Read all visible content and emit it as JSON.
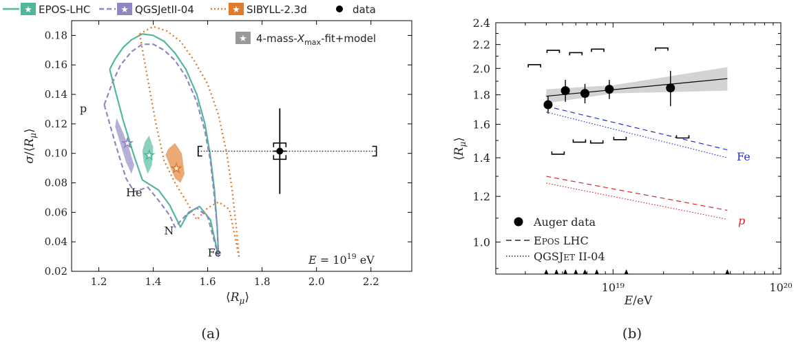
{
  "legend_top": [
    {
      "label": "EPOS-LHC",
      "color": "#4fb89c",
      "style": "solid"
    },
    {
      "label": "QGSJetII-04",
      "color": "#8f86c2",
      "style": "dashed"
    },
    {
      "label": "SIBYLL-2.3d",
      "color": "#e07b2c",
      "style": "dotted"
    },
    {
      "label": "data",
      "color": "#000000",
      "style": "marker"
    }
  ],
  "captions": {
    "a": "(a)",
    "b": "(b)"
  },
  "colors": {
    "epos": "#4fb89c",
    "qgs": "#8f86c2",
    "sib": "#e07b2c",
    "band": "#c8c8c8",
    "fe": "#2233cc",
    "p": "#dd2222"
  },
  "chart_data": [
    {
      "type": "scatter",
      "xlabel": "⟨Rμ⟩",
      "ylabel": "σ/⟨Rμ⟩",
      "xlim": [
        1.1,
        2.35
      ],
      "ylim": [
        0.02,
        0.19
      ],
      "xticks": [
        1.2,
        1.4,
        1.6,
        1.8,
        2.0,
        2.2
      ],
      "yticks": [
        0.02,
        0.04,
        0.06,
        0.08,
        0.1,
        0.12,
        0.14,
        0.16,
        0.18
      ],
      "grid": false,
      "legend_inset": "4-mass-Xmax-fit+model",
      "annotation": "E = 10¹⁹ eV",
      "composition_labels": [
        {
          "text": "p",
          "x": 1.13,
          "y": 0.128
        },
        {
          "text": "He",
          "x": 1.3,
          "y": 0.071
        },
        {
          "text": "N",
          "x": 1.44,
          "y": 0.045
        },
        {
          "text": "Fe",
          "x": 1.6,
          "y": 0.03
        }
      ],
      "data_point": {
        "x": 1.865,
        "y": 0.1015,
        "yerr": 0.029,
        "xerr_stat": 0.025,
        "xsys": [
          1.565,
          2.22
        ],
        "ysys": [
          0.096,
          0.107
        ]
      },
      "model_points": [
        {
          "model": "EPOS-LHC",
          "x": 1.385,
          "y": 0.099
        },
        {
          "model": "QGSJetII-04",
          "x": 1.305,
          "y": 0.107
        },
        {
          "model": "SIBYLL-2.3d",
          "x": 1.485,
          "y": 0.09
        }
      ],
      "series": [
        {
          "name": "EPOS-LHC",
          "outer": [
            [
              1.24,
              0.157
            ],
            [
              1.26,
              0.164
            ],
            [
              1.29,
              0.172
            ],
            [
              1.32,
              0.177
            ],
            [
              1.36,
              0.181
            ],
            [
              1.4,
              0.18
            ],
            [
              1.44,
              0.176
            ],
            [
              1.48,
              0.168
            ],
            [
              1.52,
              0.157
            ],
            [
              1.56,
              0.14
            ],
            [
              1.59,
              0.12
            ],
            [
              1.61,
              0.098
            ],
            [
              1.625,
              0.075
            ],
            [
              1.635,
              0.05
            ],
            [
              1.64,
              0.03
            ]
          ],
          "lower": [
            [
              1.24,
              0.157
            ],
            [
              1.29,
              0.122
            ],
            [
              1.33,
              0.098
            ],
            [
              1.36,
              0.082
            ],
            [
              1.42,
              0.075
            ],
            [
              1.46,
              0.065
            ],
            [
              1.5,
              0.05
            ],
            [
              1.53,
              0.06
            ],
            [
              1.57,
              0.064
            ],
            [
              1.61,
              0.055
            ],
            [
              1.64,
              0.03
            ]
          ]
        },
        {
          "name": "QGSJetII-04",
          "outer": [
            [
              1.22,
              0.133
            ],
            [
              1.25,
              0.148
            ],
            [
              1.28,
              0.16
            ],
            [
              1.32,
              0.169
            ],
            [
              1.36,
              0.174
            ],
            [
              1.4,
              0.174
            ],
            [
              1.44,
              0.17
            ],
            [
              1.48,
              0.163
            ],
            [
              1.52,
              0.152
            ],
            [
              1.56,
              0.135
            ],
            [
              1.59,
              0.115
            ],
            [
              1.61,
              0.095
            ],
            [
              1.625,
              0.07
            ],
            [
              1.635,
              0.05
            ],
            [
              1.64,
              0.03
            ]
          ],
          "lower": [
            [
              1.22,
              0.133
            ],
            [
              1.26,
              0.107
            ],
            [
              1.3,
              0.083
            ],
            [
              1.33,
              0.074
            ],
            [
              1.38,
              0.077
            ],
            [
              1.42,
              0.068
            ],
            [
              1.46,
              0.058
            ],
            [
              1.48,
              0.05
            ],
            [
              1.52,
              0.058
            ],
            [
              1.56,
              0.063
            ],
            [
              1.6,
              0.057
            ],
            [
              1.64,
              0.03
            ]
          ]
        },
        {
          "name": "SIBYLL-2.3d",
          "outer": [
            [
              1.35,
              0.181
            ],
            [
              1.4,
              0.186
            ],
            [
              1.45,
              0.183
            ],
            [
              1.5,
              0.176
            ],
            [
              1.55,
              0.163
            ],
            [
              1.6,
              0.147
            ],
            [
              1.64,
              0.126
            ],
            [
              1.67,
              0.1
            ],
            [
              1.69,
              0.075
            ],
            [
              1.705,
              0.05
            ],
            [
              1.715,
              0.03
            ]
          ],
          "lower": [
            [
              1.35,
              0.181
            ],
            [
              1.38,
              0.15
            ],
            [
              1.41,
              0.12
            ],
            [
              1.44,
              0.095
            ],
            [
              1.48,
              0.08
            ],
            [
              1.52,
              0.068
            ],
            [
              1.56,
              0.055
            ],
            [
              1.6,
              0.063
            ],
            [
              1.64,
              0.067
            ],
            [
              1.68,
              0.062
            ],
            [
              1.715,
              0.03
            ]
          ]
        }
      ]
    },
    {
      "type": "scatter",
      "xlabel": "E/eV",
      "ylabel": "⟨Rμ⟩",
      "xscale": "log",
      "yscale": "log",
      "xlim": [
        2e+18,
        1e+20
      ],
      "ylim": [
        0.88,
        2.4
      ],
      "xticks": [
        {
          "value": 1e+19,
          "label": "10¹⁹"
        },
        {
          "value": 1e+20,
          "label": "10²⁰"
        }
      ],
      "yticks": [
        1.0,
        1.2,
        1.4,
        1.6,
        1.8,
        2.0,
        2.2,
        2.4
      ],
      "grid": false,
      "legend": [
        {
          "label": "Auger data",
          "style": "marker"
        },
        {
          "label": "EPOS LHC",
          "style": "dashed"
        },
        {
          "label": "QGSJET II-04",
          "style": "dotted"
        }
      ],
      "labels": [
        {
          "text": "Fe",
          "color": "#2233cc"
        },
        {
          "text": "p",
          "color": "#dd2222"
        }
      ],
      "points": [
        {
          "x": 4.1e+18,
          "y": 1.73,
          "yerr": 0.06
        },
        {
          "x": 5.2e+18,
          "y": 1.83,
          "yerr": 0.08
        },
        {
          "x": 6.8e+18,
          "y": 1.81,
          "yerr": 0.07
        },
        {
          "x": 9.5e+18,
          "y": 1.84,
          "yerr": 0.07
        },
        {
          "x": 2.2e+19,
          "y": 1.85,
          "yerr": 0.13
        }
      ],
      "sys_upper": [
        [
          3.4e+18,
          2.03
        ],
        [
          4.4e+18,
          2.15
        ],
        [
          6e+18,
          2.13
        ],
        [
          8.1e+18,
          2.16
        ],
        [
          1.95e+19,
          2.17
        ]
      ],
      "sys_lower": [
        [
          4.7e+18,
          1.42
        ],
        [
          6.3e+18,
          1.49
        ],
        [
          8e+18,
          1.485
        ],
        [
          1.1e+19,
          1.505
        ],
        [
          2.6e+19,
          1.515
        ]
      ],
      "fit_line": [
        [
          4e+18,
          1.79
        ],
        [
          4.8e+19,
          1.92
        ]
      ],
      "fit_band": {
        "x": [
          4e+18,
          1e+19,
          4.8e+19
        ],
        "lo": [
          1.74,
          1.81,
          1.83
        ],
        "hi": [
          1.84,
          1.87,
          2.01
        ]
      },
      "model_lines": [
        {
          "label": "Fe EPOS",
          "color": "#2233cc",
          "style": "dashed",
          "x": [
            4e+18,
            4.8e+19
          ],
          "y": [
            1.72,
            1.445
          ]
        },
        {
          "label": "Fe QGSJet",
          "color": "#2233cc",
          "style": "dotted",
          "x": [
            4e+18,
            4.8e+19
          ],
          "y": [
            1.68,
            1.4
          ]
        },
        {
          "label": "p EPOS",
          "color": "#dd2222",
          "style": "dashed",
          "x": [
            4e+18,
            4.8e+19
          ],
          "y": [
            1.3,
            1.135
          ]
        },
        {
          "label": "p QGSJet",
          "color": "#dd2222",
          "style": "dotted",
          "x": [
            4e+18,
            4.8e+19
          ],
          "y": [
            1.265,
            1.095
          ]
        }
      ],
      "bin_edges": [
        4e+18,
        4.6e+18,
        6e+18,
        8e+18,
        1.2e+19,
        4.8e+19
      ]
    }
  ]
}
